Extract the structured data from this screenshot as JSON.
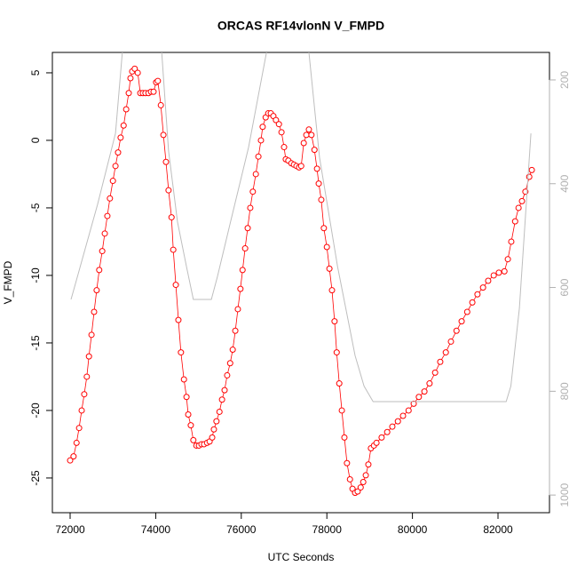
{
  "chart_data": {
    "type": "scatter",
    "title": "ORCAS RF14vlonN V_FMPD",
    "xlabel": "UTC Seconds",
    "ylabel": "V_FMPD",
    "xlim": [
      71585,
      83203
    ],
    "ylim": [
      -27.57,
      6.51
    ],
    "y2lim": [
      1034,
      147
    ],
    "xticks": [
      72000,
      74000,
      76000,
      78000,
      80000,
      82000
    ],
    "yticks": [
      -25,
      -20,
      -15,
      -10,
      -5,
      0,
      5
    ],
    "y2ticks": [
      200,
      400,
      600,
      800,
      1000
    ],
    "series": [
      {
        "color": "#ff0000",
        "axis": "y",
        "x": [
          72000,
          72080,
          72150,
          72210,
          72270,
          72330,
          72390,
          72440,
          72500,
          72560,
          72620,
          72680,
          72750,
          72810,
          72870,
          72930,
          73000,
          73060,
          73120,
          73180,
          73250,
          73310,
          73370,
          73410,
          73450,
          73510,
          73580,
          73640,
          73700,
          73760,
          73830,
          73890,
          73950,
          74010,
          74050,
          74120,
          74180,
          74240,
          74300,
          74370,
          74410,
          74470,
          74530,
          74590,
          74660,
          74720,
          74760,
          74820,
          74880,
          74950,
          75010,
          75070,
          75130,
          75200,
          75260,
          75320,
          75360,
          75420,
          75490,
          75550,
          75610,
          75670,
          75740,
          75800,
          75860,
          75920,
          75980,
          76030,
          76090,
          76150,
          76210,
          76270,
          76340,
          76400,
          76460,
          76500,
          76570,
          76630,
          76690,
          76750,
          76810,
          76880,
          76940,
          77000,
          77040,
          77100,
          77170,
          77230,
          77290,
          77350,
          77400,
          77460,
          77520,
          77580,
          77640,
          77710,
          77770,
          77810,
          77870,
          77930,
          78000,
          78060,
          78120,
          78180,
          78230,
          78290,
          78350,
          78410,
          78470,
          78540,
          78600,
          78660,
          78720,
          78790,
          78850,
          78910,
          78970,
          79030,
          79100,
          79160,
          79280,
          79410,
          79530,
          79660,
          79780,
          79910,
          80030,
          80150,
          80280,
          80400,
          80530,
          80650,
          80780,
          80900,
          81030,
          81150,
          81280,
          81400,
          81520,
          81650,
          81770,
          81900,
          82020,
          82150,
          82230,
          82310,
          82400,
          82480,
          82560,
          82640,
          82730,
          82790
        ],
        "values": [
          -23.7,
          -23.4,
          -22.4,
          -21.3,
          -20.0,
          -18.8,
          -17.5,
          -16.0,
          -14.4,
          -12.7,
          -11.1,
          -9.6,
          -8.2,
          -6.9,
          -5.6,
          -4.3,
          -3.0,
          -1.9,
          -0.9,
          0.2,
          1.1,
          2.3,
          3.5,
          4.6,
          5.1,
          5.3,
          5.0,
          3.5,
          3.5,
          3.5,
          3.5,
          3.6,
          3.6,
          4.3,
          4.4,
          2.6,
          0.4,
          -1.6,
          -3.7,
          -5.7,
          -8.1,
          -10.7,
          -13.3,
          -15.7,
          -17.7,
          -19.0,
          -20.3,
          -21.1,
          -22.2,
          -22.6,
          -22.6,
          -22.5,
          -22.5,
          -22.4,
          -22.3,
          -22.0,
          -21.4,
          -20.8,
          -20.1,
          -19.2,
          -18.5,
          -17.4,
          -16.5,
          -15.5,
          -14.1,
          -12.5,
          -11.0,
          -9.6,
          -8.0,
          -6.5,
          -5.0,
          -3.8,
          -2.5,
          -1.2,
          0.0,
          1.0,
          1.7,
          2.0,
          2.0,
          1.8,
          1.5,
          1.2,
          0.6,
          -0.5,
          -1.4,
          -1.5,
          -1.7,
          -1.8,
          -1.9,
          -2.0,
          -1.9,
          -0.2,
          0.4,
          0.8,
          0.4,
          -0.7,
          -2.1,
          -3.2,
          -4.4,
          -6.5,
          -7.9,
          -9.5,
          -11.1,
          -13.4,
          -15.7,
          -18.0,
          -20.0,
          -22.0,
          -23.9,
          -25.1,
          -25.8,
          -26.1,
          -26.0,
          -25.7,
          -25.3,
          -24.8,
          -24.0,
          -22.8,
          -22.6,
          -22.4,
          -22.0,
          -21.6,
          -21.2,
          -20.8,
          -20.4,
          -20.0,
          -19.5,
          -19.0,
          -18.6,
          -18.0,
          -17.2,
          -16.4,
          -15.7,
          -14.9,
          -14.1,
          -13.4,
          -12.7,
          -12.0,
          -11.4,
          -10.9,
          -10.4,
          -10.0,
          -9.8,
          -9.7,
          -8.8,
          -7.5,
          -6.0,
          -5.0,
          -4.5,
          -3.8,
          -2.7,
          -2.2
        ]
      },
      {
        "color": "#bebebe",
        "axis": "y2",
        "x": [
          72020,
          72120,
          72640,
          73060,
          73220,
          73680,
          74140,
          74300,
          74510,
          74720,
          74880,
          75300,
          75440,
          75760,
          76170,
          76590,
          77080,
          77580,
          77830,
          78250,
          78660,
          78870,
          79080,
          82190,
          82300,
          82500,
          82770
        ],
        "values": [
          623,
          594,
          440,
          303,
          147,
          60,
          147,
          337,
          474,
          560,
          623,
          623,
          580,
          470,
          330,
          147,
          60,
          147,
          350,
          560,
          731,
          790,
          820,
          820,
          790,
          640,
          303
        ]
      }
    ]
  }
}
